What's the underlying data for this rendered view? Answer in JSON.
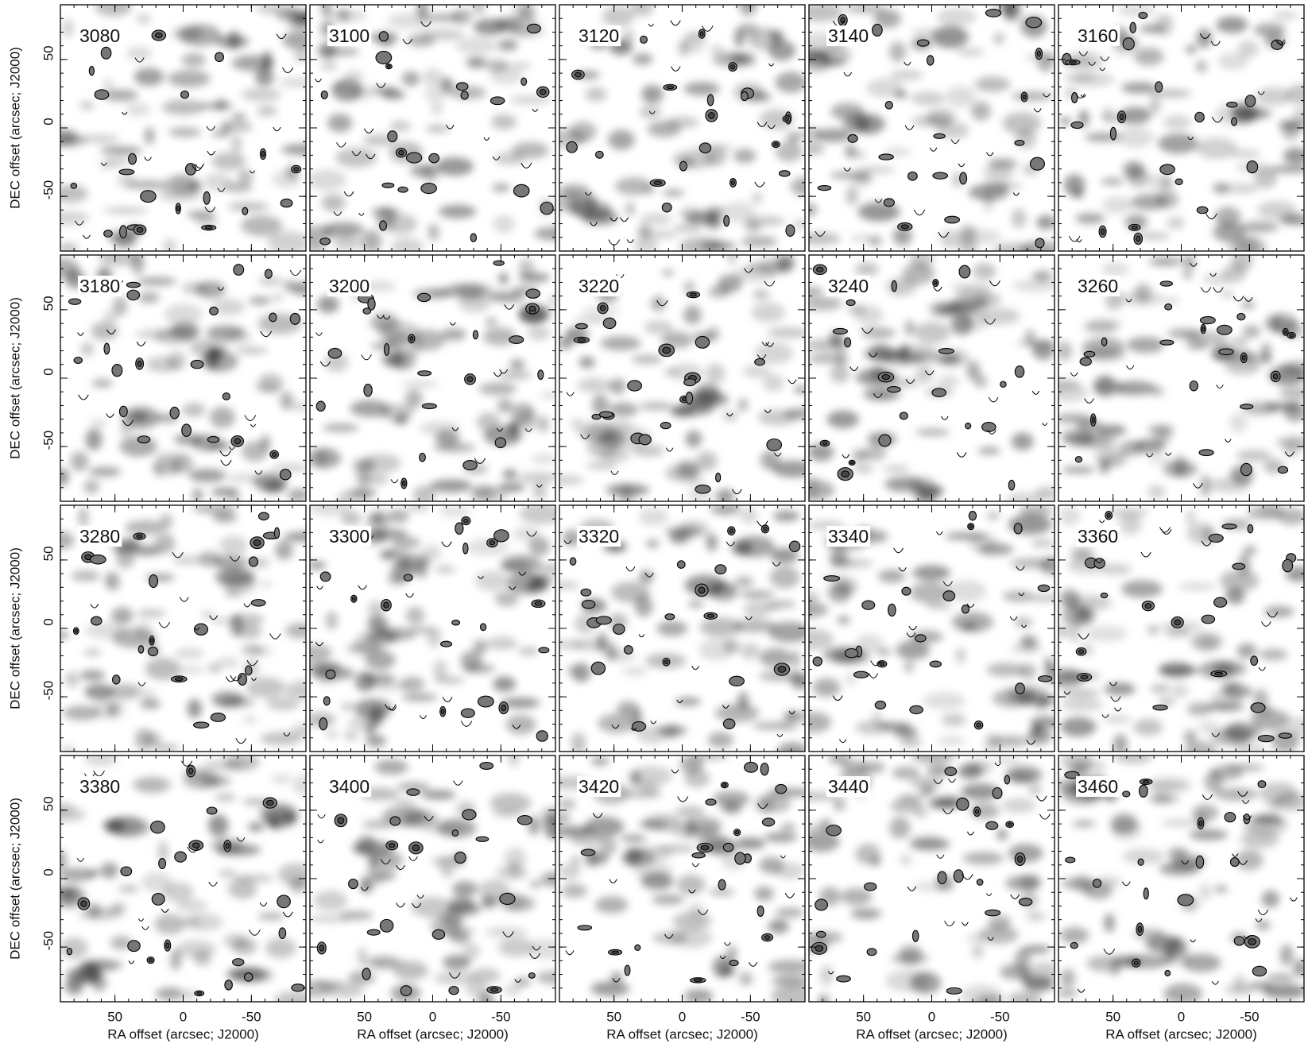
{
  "chart_data": {
    "type": "image",
    "panels": [
      "3080",
      "3100",
      "3120",
      "3140",
      "3160",
      "3180",
      "3200",
      "3220",
      "3240",
      "3260",
      "3280",
      "3300",
      "3320",
      "3340",
      "3360",
      "3380",
      "3400",
      "3420",
      "3440",
      "3460"
    ],
    "columns": 5,
    "xlabel": "RA offset (arcsec; J2000)",
    "ylabel": "DEC offset (arcsec; J2000)",
    "xlim": [
      90,
      -90
    ],
    "ylim": [
      -90,
      90
    ],
    "xticks": [
      50,
      0,
      -50
    ],
    "yticks": [
      -50,
      0,
      50
    ]
  }
}
